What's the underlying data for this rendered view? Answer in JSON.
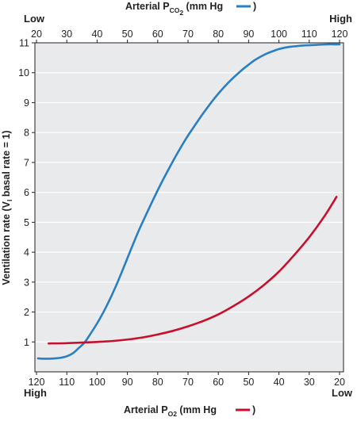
{
  "chart_data": {
    "type": "line",
    "ylabel": "Ventilation rate (V",
    "ylabel_sub": "I",
    "ylabel_rest": " basal rate = 1)",
    "ylim": [
      0,
      11
    ],
    "yticks": [
      1,
      2,
      3,
      4,
      5,
      6,
      7,
      8,
      9,
      10,
      11
    ],
    "grid": true,
    "background_color": "#e9eaeb",
    "grid_color": "#ffffff",
    "top_axis": {
      "label_prefix": "Arterial P",
      "label_sub": "CO",
      "label_sub2": "2",
      "label_suffix": " (mm Hg ",
      "label_close": ")",
      "range": [
        20,
        120
      ],
      "ticks": [
        20,
        30,
        40,
        50,
        60,
        70,
        80,
        90,
        100,
        110,
        120
      ],
      "end_left": "Low",
      "end_right": "High"
    },
    "bottom_axis": {
      "label_prefix": "Arterial P",
      "label_sub": "O",
      "label_sub2": "2",
      "label_suffix": " (mm Hg ",
      "label_close": ")",
      "range": [
        120,
        20
      ],
      "ticks": [
        120,
        110,
        100,
        90,
        80,
        70,
        60,
        50,
        40,
        30,
        20
      ],
      "end_left": "High",
      "end_right": "Low"
    },
    "series": [
      {
        "axis": "top",
        "variable": "PCO2",
        "color": "#2a7fc4",
        "x": [
          20.5,
          22,
          24,
          26,
          28,
          30,
          32,
          34,
          36,
          38,
          40,
          42,
          44,
          46,
          48,
          50,
          52,
          54,
          56,
          58,
          60,
          62,
          64,
          66,
          68,
          70,
          72,
          74,
          76,
          78,
          80,
          82,
          84,
          86,
          88,
          90,
          92,
          94,
          96,
          98,
          100,
          102,
          104,
          106,
          108,
          110,
          112,
          114,
          116,
          118,
          120
        ],
        "values": [
          0.45,
          0.44,
          0.44,
          0.45,
          0.47,
          0.52,
          0.62,
          0.8,
          1.0,
          1.3,
          1.62,
          1.98,
          2.38,
          2.82,
          3.3,
          3.8,
          4.3,
          4.78,
          5.22,
          5.65,
          6.07,
          6.47,
          6.85,
          7.22,
          7.57,
          7.9,
          8.2,
          8.5,
          8.78,
          9.05,
          9.3,
          9.53,
          9.74,
          9.93,
          10.11,
          10.27,
          10.42,
          10.54,
          10.64,
          10.72,
          10.79,
          10.84,
          10.87,
          10.89,
          10.91,
          10.92,
          10.93,
          10.94,
          10.95,
          10.95,
          10.95
        ]
      },
      {
        "axis": "bottom",
        "variable": "PO2",
        "color": "#c8102e",
        "x": [
          116,
          110,
          105,
          100,
          95,
          90,
          85,
          80,
          75,
          70,
          65,
          60,
          55,
          50,
          45,
          40,
          35,
          30,
          25,
          21
        ],
        "values": [
          0.95,
          0.96,
          0.98,
          1.0,
          1.03,
          1.08,
          1.15,
          1.25,
          1.37,
          1.52,
          1.7,
          1.92,
          2.2,
          2.52,
          2.9,
          3.35,
          3.9,
          4.5,
          5.2,
          5.85
        ]
      }
    ]
  }
}
